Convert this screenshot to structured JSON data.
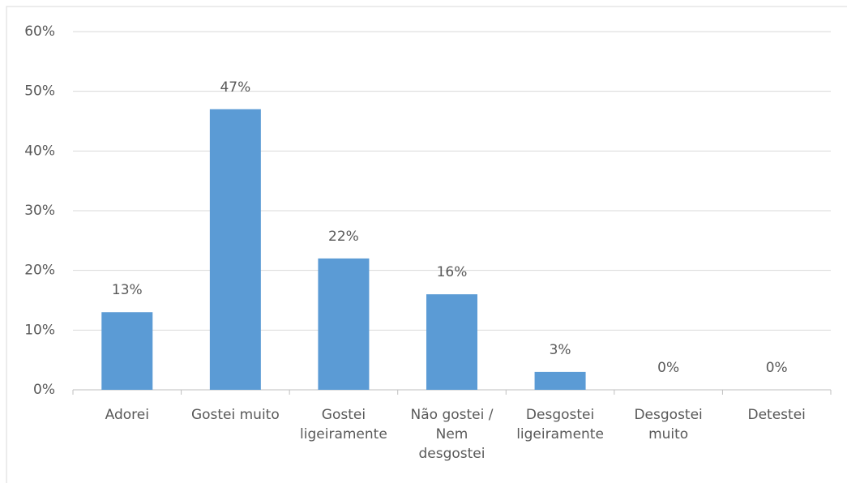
{
  "chart_data": {
    "type": "bar",
    "categories": [
      "Adorei",
      "Gostei muito",
      "Gostei ligeiramente",
      "Não gostei / Nem desgostei",
      "Desgostei ligeiramente",
      "Desgostei muito",
      "Detestei"
    ],
    "values": [
      13,
      47,
      22,
      16,
      3,
      0,
      0
    ],
    "value_labels": [
      "13%",
      "47%",
      "22%",
      "16%",
      "3%",
      "0%",
      "0%"
    ],
    "color": "#5b9bd5",
    "ylim": [
      0,
      60
    ],
    "yticks": [
      {
        "value": 0,
        "label": "0%"
      },
      {
        "value": 10,
        "label": "10%"
      },
      {
        "value": 20,
        "label": "20%"
      },
      {
        "value": 30,
        "label": "30%"
      },
      {
        "value": 40,
        "label": "40%"
      },
      {
        "value": 50,
        "label": "50%"
      },
      {
        "value": 60,
        "label": "60%"
      }
    ],
    "grid": true
  }
}
